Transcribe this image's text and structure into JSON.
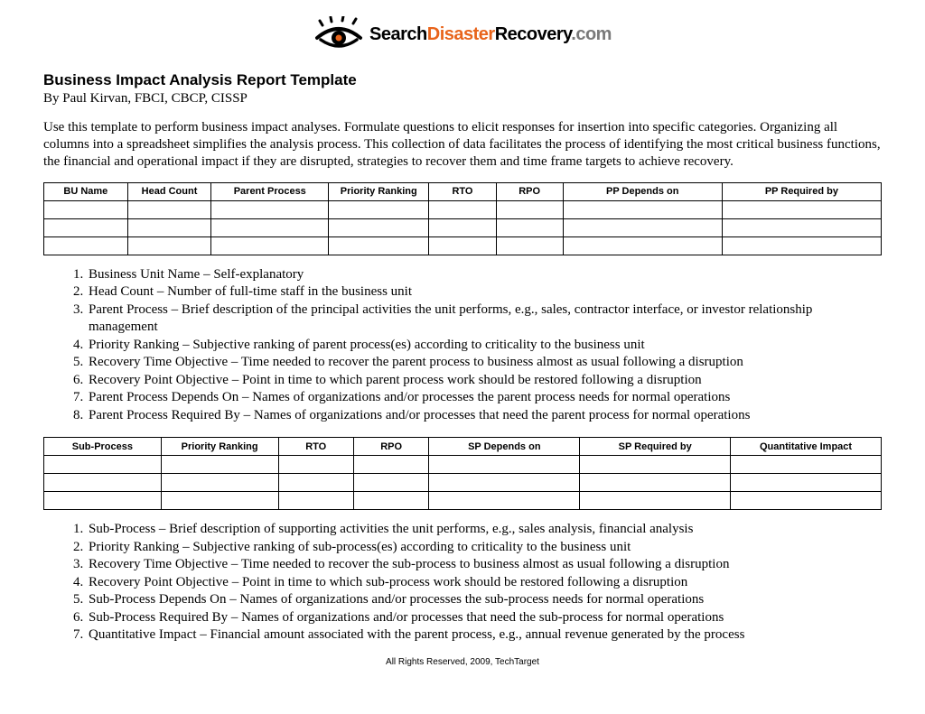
{
  "logo": {
    "word1": "Search",
    "word2": "Disaster",
    "word3": "Recovery",
    "word4": ".com",
    "color_word1": "#000000",
    "color_word2": "#e8641b",
    "color_word3": "#000000",
    "color_word4": "#7a7a7a",
    "eye_stroke": "#000000",
    "eye_pupil": "#e8641b"
  },
  "title": "Business Impact Analysis Report Template",
  "byline": "By Paul Kirvan, FBCI, CBCP, CISSP",
  "intro": "Use this template to perform business impact analyses. Formulate questions to elicit responses for insertion into specific categories. Organizing all columns into a spreadsheet simplifies the analysis process. This collection of data facilitates the process of identifying the most critical business functions, the financial and operational impact if they are disrupted, strategies to recover them and time frame targets to achieve recovery.",
  "table1": {
    "columns": [
      "BU Name",
      "Head Count",
      "Parent Process",
      "Priority Ranking",
      "RTO",
      "RPO",
      "PP Depends on",
      "PP Required by"
    ],
    "col_widths_pct": [
      10,
      10,
      14,
      12,
      8,
      8,
      19,
      19
    ],
    "rows": [
      [
        "",
        "",
        "",
        "",
        "",
        "",
        "",
        ""
      ],
      [
        "",
        "",
        "",
        "",
        "",
        "",
        "",
        ""
      ],
      [
        "",
        "",
        "",
        "",
        "",
        "",
        "",
        ""
      ]
    ],
    "header_fontsize": 11,
    "border_color": "#000000"
  },
  "defs1": [
    "Business Unit Name – Self-explanatory",
    "Head Count – Number of full-time staff in the business unit",
    "Parent Process – Brief description of the principal activities the unit performs, e.g., sales, contractor interface, or investor relationship management",
    "Priority Ranking – Subjective ranking of parent process(es) according to criticality to the business unit",
    "Recovery Time Objective – Time needed to recover the parent process to business almost as usual following a disruption",
    "Recovery Point Objective – Point in time to which parent process work should be restored following a disruption",
    "Parent Process Depends On – Names of organizations and/or processes the parent process needs for normal operations",
    "Parent Process Required By – Names of organizations and/or processes that need the parent process for normal operations"
  ],
  "table2": {
    "columns": [
      "Sub-Process",
      "Priority Ranking",
      "RTO",
      "RPO",
      "SP Depends on",
      "SP Required by",
      "Quantitative Impact"
    ],
    "col_widths_pct": [
      14,
      14,
      9,
      9,
      18,
      18,
      18
    ],
    "rows": [
      [
        "",
        "",
        "",
        "",
        "",
        "",
        ""
      ],
      [
        "",
        "",
        "",
        "",
        "",
        "",
        ""
      ],
      [
        "",
        "",
        "",
        "",
        "",
        "",
        ""
      ]
    ],
    "header_fontsize": 11,
    "border_color": "#000000"
  },
  "defs2": [
    "Sub-Process – Brief description of supporting activities the unit performs, e.g., sales analysis, financial analysis",
    "Priority Ranking – Subjective ranking of sub-process(es) according to criticality to the business unit",
    "Recovery Time Objective – Time needed to recover the sub-process to business almost as usual following a disruption",
    "Recovery Point Objective – Point in time to which sub-process work should be restored following a disruption",
    "Sub-Process Depends On – Names of organizations and/or processes the sub-process needs for normal operations",
    "Sub-Process Required By – Names of organizations and/or processes that need the sub-process for normal operations",
    "Quantitative Impact – Financial amount associated with the parent process, e.g., annual revenue generated by the process"
  ],
  "footer": "All Rights Reserved, 2009, TechTarget",
  "styles": {
    "background_color": "#ffffff",
    "body_font": "Times New Roman",
    "header_font": "Arial",
    "title_fontsize": 17,
    "body_fontsize": 15,
    "footer_fontsize": 10
  }
}
